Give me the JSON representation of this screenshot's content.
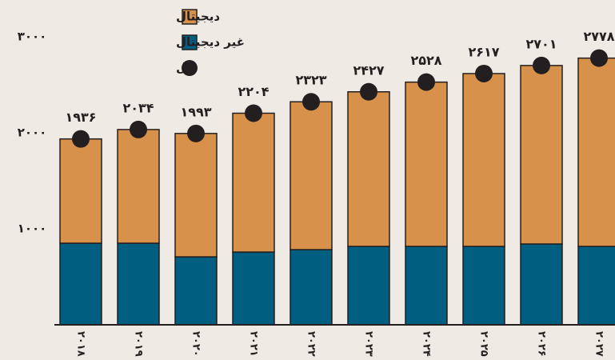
{
  "chart_data": {
    "type": "stacked_bar",
    "categories": [
      "۲۰۱۸",
      "۲۰۱۹",
      "۲۰۲۰",
      "۲۰۲۱",
      "۲۰۲۲",
      "۲۰۲۳",
      "۲۰۲۴",
      "۲۰۲۵",
      "۲۰۲۶",
      "۲۰۲۷"
    ],
    "series": [
      {
        "name": "دیجیتال",
        "color": "#d8914a",
        "values": [
          1086,
          1184,
          1285,
          1446,
          1540,
          1610,
          1711,
          1800,
          1859,
          1961
        ]
      },
      {
        "name": "غیر دیجیتال",
        "color": "#005e80",
        "values": [
          850,
          850,
          708,
          758,
          783,
          817,
          817,
          817,
          842,
          817
        ]
      },
      {
        "name": "کل",
        "type": "dot",
        "color": "#231f20",
        "values": [
          1936,
          2034,
          1993,
          2204,
          2323,
          2427,
          2528,
          2617,
          2701,
          2778
        ],
        "value_labels": [
          "۱۹۳۶",
          "۲۰۳۴",
          "۱۹۹۳",
          "۲۲۰۴",
          "۲۳۲۳",
          "۲۴۲۷",
          "۲۵۲۸",
          "۲۶۱۷",
          "۲۷۰۱",
          "۲۷۷۸"
        ]
      }
    ],
    "ylim": [
      0,
      3000
    ],
    "yticks": [
      {
        "value": 1000,
        "label": "۱۰۰۰"
      },
      {
        "value": 2000,
        "label": "۲۰۰۰"
      },
      {
        "value": 3000,
        "label": "۳۰۰۰"
      }
    ],
    "grid": false,
    "legend": "top-left"
  }
}
